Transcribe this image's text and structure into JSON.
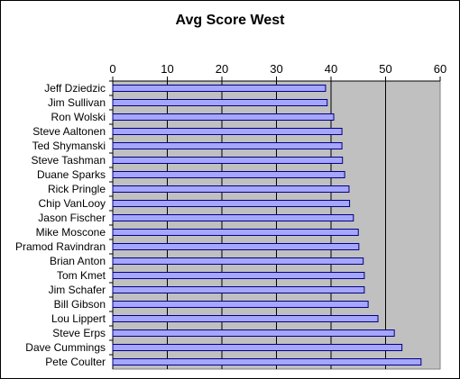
{
  "chart_data": {
    "type": "bar",
    "orientation": "horizontal",
    "title": "Avg Score West",
    "xlabel": "",
    "ylabel": "",
    "xlim": [
      0,
      60
    ],
    "ticks": [
      0,
      10,
      20,
      30,
      40,
      50,
      60
    ],
    "tick_labels": [
      "0",
      "10",
      "20",
      "30",
      "40",
      "50",
      "60"
    ],
    "tick_axis_position": "top",
    "grid": "vertical major gridlines",
    "legend": "none",
    "categories": [
      "Jeff Dziedzic",
      "Jim Sullivan",
      "Ron Wolski",
      "Steve Aaltonen",
      "Ted Shymanski",
      "Steve Tashman",
      "Duane Sparks",
      "Rick Pringle",
      "Chip VanLooy",
      "Jason Fischer",
      "Mike Moscone",
      "Pramod Ravindran",
      "Brian Anton",
      "Tom Kmet",
      "Jim Schafer",
      "Bill Gibson",
      "Lou Lippert",
      "Steve Erps",
      "Dave Cummings",
      "Pete Coulter"
    ],
    "values": [
      39.0,
      39.3,
      40.5,
      42.0,
      42.0,
      42.1,
      42.5,
      43.3,
      43.4,
      44.1,
      45.0,
      45.1,
      45.9,
      46.1,
      46.1,
      46.8,
      48.6,
      51.6,
      53.0,
      56.5
    ],
    "colors": {
      "bar_fill": "#a6a6ff",
      "bar_stroke": "#000080",
      "plot_background": "#c0c0c0",
      "gridline": "#000000"
    }
  }
}
